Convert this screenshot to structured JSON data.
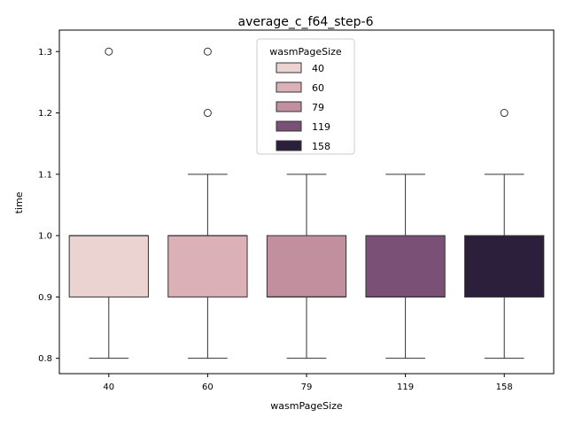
{
  "chart_data": {
    "type": "box",
    "title": "average_c_f64_step-6",
    "xlabel": "wasmPageSize",
    "ylabel": "time",
    "ylim": [
      0.775,
      1.335
    ],
    "y_ticks": [
      "0.8",
      "0.9",
      "1.0",
      "1.1",
      "1.2",
      "1.3"
    ],
    "y_tick_values": [
      0.8,
      0.9,
      1.0,
      1.1,
      1.2,
      1.3
    ],
    "grid": false,
    "legend": {
      "title": "wasmPageSize",
      "placement": "top-center",
      "entries": [
        "40",
        "60",
        "79",
        "119",
        "158"
      ]
    },
    "categories": [
      "40",
      "60",
      "79",
      "119",
      "158"
    ],
    "colors": [
      "#ead3d0",
      "#dbb0b7",
      "#c18f9e",
      "#7a5077",
      "#2c1f3b"
    ],
    "boxes": [
      {
        "category": "40",
        "whisker_low": 0.8,
        "q1": 0.9,
        "median": 1.0,
        "q3": 1.0,
        "whisker_high": 1.0,
        "outliers": [
          1.3
        ]
      },
      {
        "category": "60",
        "whisker_low": 0.8,
        "q1": 0.9,
        "median": 1.0,
        "q3": 1.0,
        "whisker_high": 1.1,
        "outliers": [
          1.3,
          1.2
        ]
      },
      {
        "category": "79",
        "whisker_low": 0.8,
        "q1": 0.9,
        "median": 0.9,
        "q3": 1.0,
        "whisker_high": 1.1,
        "outliers": []
      },
      {
        "category": "119",
        "whisker_low": 0.8,
        "q1": 0.9,
        "median": 0.9,
        "q3": 1.0,
        "whisker_high": 1.1,
        "outliers": []
      },
      {
        "category": "158",
        "whisker_low": 0.8,
        "q1": 0.9,
        "median": 0.9,
        "q3": 1.0,
        "whisker_high": 1.1,
        "outliers": [
          1.2
        ]
      }
    ]
  }
}
